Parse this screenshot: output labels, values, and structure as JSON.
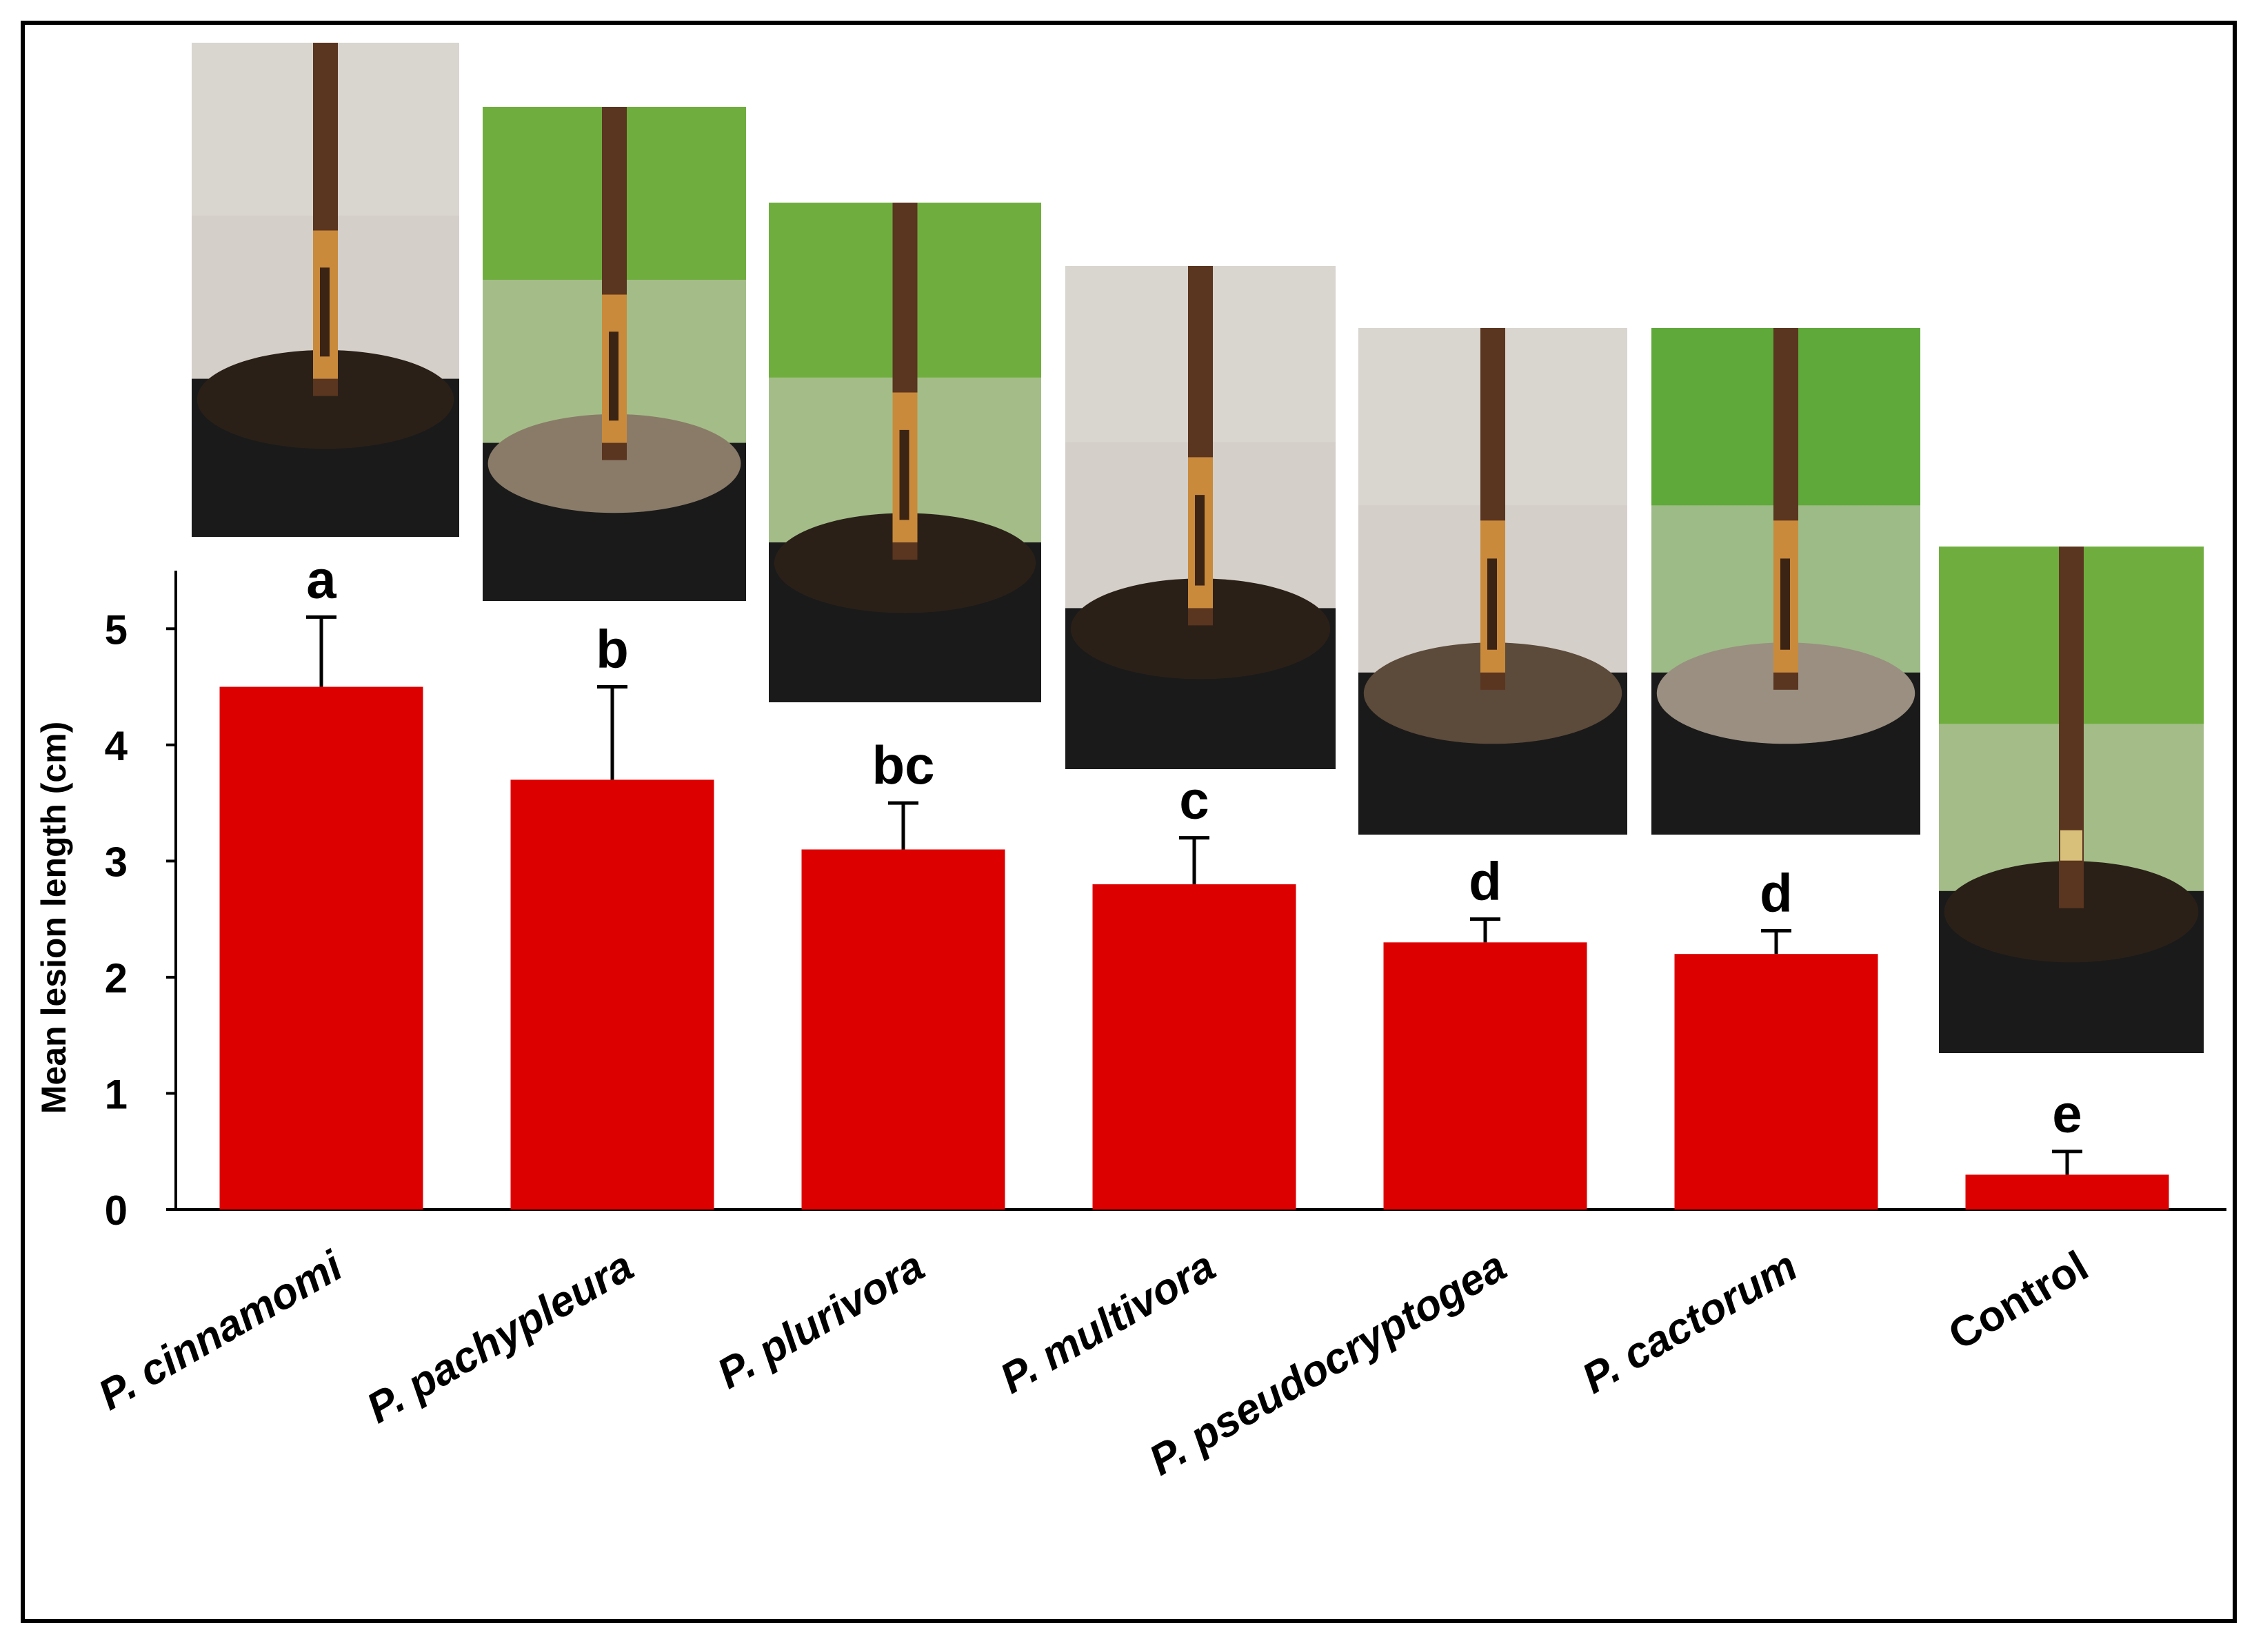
{
  "chart_data": {
    "type": "bar",
    "title": "",
    "xlabel": "",
    "ylabel": "Mean lesion length (cm)",
    "ylim": [
      0,
      5.5
    ],
    "yticks": [
      0,
      1,
      2,
      3,
      4,
      5
    ],
    "categories": [
      "P. cinnamomi",
      "P. pachypleura",
      "P. plurivora",
      "P. multivora",
      "P. pseudocryptogea",
      "P. cactorum",
      "Control"
    ],
    "category_italic": [
      true,
      true,
      true,
      true,
      true,
      true,
      false
    ],
    "values": [
      4.5,
      3.7,
      3.1,
      2.8,
      2.3,
      2.2,
      0.3
    ],
    "errors": [
      0.6,
      0.8,
      0.4,
      0.4,
      0.2,
      0.2,
      0.2
    ],
    "significance_letters": [
      "a",
      "b",
      "bc",
      "c",
      "d",
      "d",
      "e"
    ],
    "bar_color": "#dd0000",
    "photos": [
      {
        "name": "photo-p-cinnamomi",
        "subject": "seedling stem lesion",
        "background": "#d9d5cf",
        "soil": "#2a2018",
        "pot": "#1a1a1a"
      },
      {
        "name": "photo-p-pachypleura",
        "subject": "seedling stem lesion",
        "background": "#6fae3e",
        "soil": "#8a7b68",
        "pot": "#1a1a1a"
      },
      {
        "name": "photo-p-plurivora",
        "subject": "seedling stem lesion",
        "background": "#6fae3e",
        "soil": "#2a2018",
        "pot": "#1a1a1a"
      },
      {
        "name": "photo-p-multivora",
        "subject": "seedling stem lesion",
        "background": "#d9d5cf",
        "soil": "#2a2018",
        "pot": "#1a1a1a"
      },
      {
        "name": "photo-p-pseudocryptogea",
        "subject": "seedling stem lesion",
        "background": "#d9d5cf",
        "soil": "#5c4a3a",
        "pot": "#1a1a1a"
      },
      {
        "name": "photo-p-cactorum",
        "subject": "seedling stem lesion",
        "background": "#5fa83a",
        "soil": "#9a8f80",
        "pot": "#1a1a1a"
      },
      {
        "name": "photo-control",
        "subject": "healthy seedling stem",
        "background": "#6fae3e",
        "soil": "#2a2018",
        "pot": "#1a1a1a"
      }
    ]
  }
}
